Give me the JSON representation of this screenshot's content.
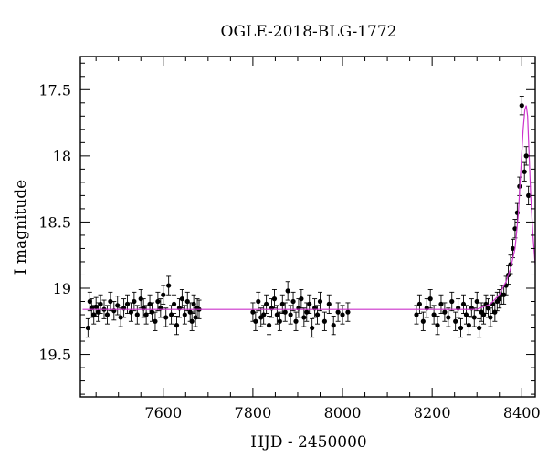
{
  "chart_data": {
    "type": "scatter",
    "title": "OGLE-2018-BLG-1772",
    "xlabel": "HJD - 2450000",
    "ylabel": "I magnitude",
    "xlim": [
      7415,
      8430
    ],
    "ylim": [
      19.82,
      17.25
    ],
    "y_inverted": true,
    "xticks": [
      7600,
      7800,
      8000,
      8200,
      8400
    ],
    "xtick_labels": [
      "7600",
      "7800",
      "8000",
      "8200",
      "8400"
    ],
    "yticks": [
      17.5,
      18,
      18.5,
      19,
      19.5
    ],
    "ytick_labels": [
      "17.5",
      "18",
      "18.5",
      "19",
      "19.5"
    ],
    "grid": false,
    "colors": {
      "data": "#000000",
      "model": "#cc33cc"
    },
    "series": [
      {
        "kind": "observations",
        "x": [
          7432,
          7436,
          7440,
          7445,
          7450,
          7455,
          7460,
          7468,
          7475,
          7482,
          7490,
          7498,
          7505,
          7512,
          7520,
          7528,
          7535,
          7542,
          7550,
          7556,
          7562,
          7570,
          7575,
          7582,
          7588,
          7594,
          7600,
          7606,
          7612,
          7618,
          7624,
          7630,
          7636,
          7642,
          7648,
          7654,
          7660,
          7664,
          7668,
          7672,
          7676,
          7680,
          7800,
          7806,
          7812,
          7818,
          7824,
          7830,
          7836,
          7842,
          7848,
          7854,
          7860,
          7866,
          7872,
          7878,
          7884,
          7890,
          7896,
          7902,
          7908,
          7914,
          7920,
          7926,
          7932,
          7938,
          7944,
          7950,
          7960,
          7970,
          7980,
          7990,
          8000,
          8012,
          8165,
          8172,
          8180,
          8188,
          8196,
          8204,
          8212,
          8220,
          8228,
          8236,
          8244,
          8252,
          8258,
          8264,
          8270,
          8276,
          8282,
          8288,
          8294,
          8300,
          8305,
          8310,
          8315,
          8320,
          8325,
          8330,
          8335,
          8340,
          8345,
          8350,
          8355,
          8360,
          8365,
          8370,
          8375,
          8380,
          8385,
          8390,
          8395,
          8400,
          8406,
          8410,
          8415
        ],
        "y": [
          19.3,
          19.1,
          19.15,
          19.2,
          19.14,
          19.18,
          19.12,
          19.16,
          19.2,
          19.1,
          19.17,
          19.13,
          19.22,
          19.15,
          19.12,
          19.18,
          19.1,
          19.2,
          19.08,
          19.15,
          19.2,
          19.12,
          19.18,
          19.25,
          19.1,
          19.15,
          19.05,
          19.22,
          18.98,
          19.2,
          19.12,
          19.28,
          19.15,
          19.08,
          19.2,
          19.1,
          19.18,
          19.25,
          19.12,
          19.22,
          19.15,
          19.16,
          19.18,
          19.25,
          19.1,
          19.22,
          19.2,
          19.12,
          19.28,
          19.15,
          19.08,
          19.2,
          19.25,
          19.12,
          19.18,
          19.02,
          19.2,
          19.1,
          19.25,
          19.15,
          19.08,
          19.22,
          19.18,
          19.12,
          19.3,
          19.15,
          19.2,
          19.1,
          19.25,
          19.12,
          19.28,
          19.18,
          19.2,
          19.18,
          19.2,
          19.12,
          19.25,
          19.15,
          19.08,
          19.2,
          19.28,
          19.12,
          19.18,
          19.22,
          19.1,
          19.25,
          19.15,
          19.3,
          19.12,
          19.2,
          19.28,
          19.15,
          19.22,
          19.1,
          19.3,
          19.18,
          19.2,
          19.12,
          19.15,
          19.22,
          19.12,
          19.18,
          19.1,
          19.08,
          19.05,
          19.05,
          18.98,
          18.9,
          18.82,
          18.7,
          18.55,
          18.43,
          18.23,
          17.62,
          18.12,
          18.0,
          18.3
        ],
        "yerr": 0.07
      },
      {
        "kind": "model",
        "x": [
          7420,
          8300,
          8330,
          8350,
          8365,
          8375,
          8385,
          8392,
          8398,
          8403,
          8407,
          8410,
          8413,
          8416,
          8420,
          8425,
          8430
        ],
        "y": [
          19.16,
          19.16,
          19.12,
          19.05,
          18.95,
          18.85,
          18.7,
          18.45,
          18.1,
          17.8,
          17.65,
          17.62,
          17.7,
          17.95,
          18.3,
          18.6,
          18.82
        ]
      }
    ]
  }
}
